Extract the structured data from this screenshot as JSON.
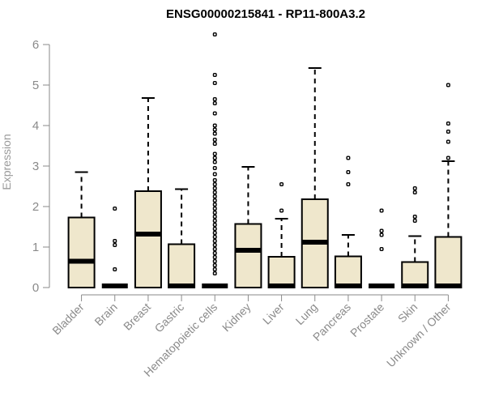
{
  "chart_data": {
    "type": "box",
    "title": "ENSG00000215841 - RP11-800A3.2",
    "ylabel": "Expression",
    "xlabel": "",
    "ylim": [
      0,
      6
    ],
    "yticks": [
      0,
      1,
      2,
      3,
      4,
      5,
      6
    ],
    "grid": false,
    "colors": {
      "box_fill": "#efe7cc",
      "line": "#000000",
      "axis": "#8a8a8a",
      "title": "#000000"
    },
    "categories": [
      "Bladder",
      "Brain",
      "Breast",
      "Gastric",
      "Hematopoietic cells",
      "Kidney",
      "Liver",
      "Lung",
      "Pancreas",
      "Prostate",
      "Skin",
      "Unknown / Other"
    ],
    "boxes": [
      {
        "q1": 0,
        "median": 0.65,
        "q3": 1.73,
        "whisker_low": 0,
        "whisker_high": 2.85,
        "outliers": []
      },
      {
        "q1": 0,
        "median": 0,
        "q3": 0,
        "whisker_low": 0,
        "whisker_high": 0,
        "outliers": [
          0.45,
          1.05,
          1.15,
          1.95
        ]
      },
      {
        "q1": 0,
        "median": 1.32,
        "q3": 2.38,
        "whisker_low": 0,
        "whisker_high": 4.68,
        "outliers": []
      },
      {
        "q1": 0,
        "median": 0,
        "q3": 1.07,
        "whisker_low": 0,
        "whisker_high": 2.43,
        "outliers": []
      },
      {
        "q1": 0,
        "median": 0,
        "q3": 0,
        "whisker_low": 0,
        "whisker_high": 0,
        "outliers": [
          0.35,
          0.45,
          0.55,
          0.65,
          0.75,
          0.85,
          0.95,
          1.05,
          1.15,
          1.25,
          1.35,
          1.45,
          1.55,
          1.65,
          1.75,
          1.85,
          1.95,
          2.05,
          2.15,
          2.25,
          2.35,
          2.45,
          2.55,
          2.65,
          2.8,
          2.95,
          3.1,
          3.2,
          3.3,
          3.55,
          3.65,
          3.8,
          3.9,
          4.0,
          4.3,
          4.55,
          4.65,
          5.05,
          5.25,
          6.25
        ]
      },
      {
        "q1": 0,
        "median": 0.92,
        "q3": 1.57,
        "whisker_low": 0,
        "whisker_high": 2.98,
        "outliers": []
      },
      {
        "q1": 0,
        "median": 0,
        "q3": 0.76,
        "whisker_low": 0,
        "whisker_high": 1.7,
        "outliers": [
          1.9,
          2.55
        ]
      },
      {
        "q1": 0,
        "median": 1.12,
        "q3": 2.18,
        "whisker_low": 0,
        "whisker_high": 5.42,
        "outliers": []
      },
      {
        "q1": 0,
        "median": 0,
        "q3": 0.77,
        "whisker_low": 0,
        "whisker_high": 1.3,
        "outliers": [
          2.55,
          2.85,
          3.2
        ]
      },
      {
        "q1": 0,
        "median": 0,
        "q3": 0,
        "whisker_low": 0,
        "whisker_high": 0,
        "outliers": [
          0.95,
          1.3,
          1.4,
          1.9
        ]
      },
      {
        "q1": 0,
        "median": 0,
        "q3": 0.63,
        "whisker_low": 0,
        "whisker_high": 1.27,
        "outliers": [
          1.65,
          1.75,
          2.35,
          2.45
        ]
      },
      {
        "q1": 0,
        "median": 0,
        "q3": 1.25,
        "whisker_low": 0,
        "whisker_high": 3.12,
        "outliers": [
          3.2,
          3.6,
          3.85,
          4.05,
          5.0
        ]
      }
    ]
  }
}
